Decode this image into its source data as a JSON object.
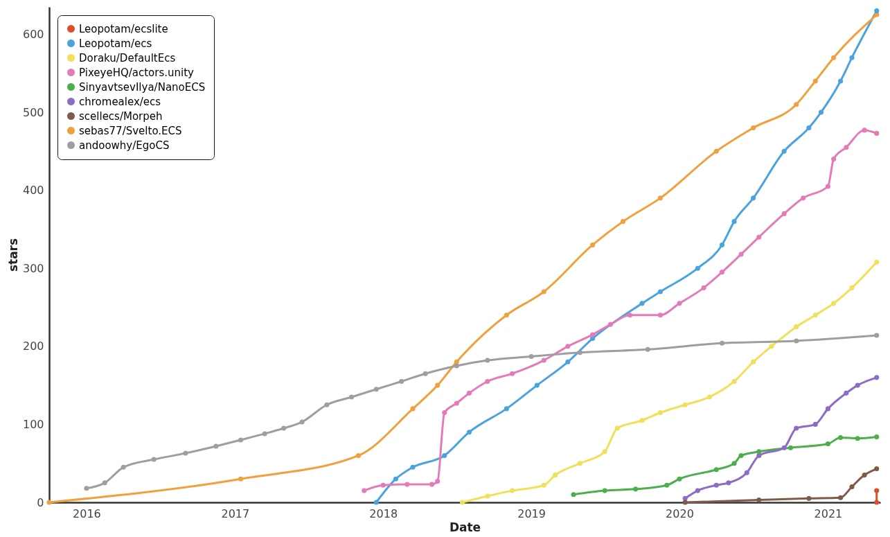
{
  "chart_data": {
    "type": "line",
    "xlabel": "Date",
    "ylabel": "stars",
    "xlim": [
      "2015-10-01",
      "2021-05-10"
    ],
    "xticks": [
      "2016",
      "2017",
      "2018",
      "2019",
      "2020",
      "2021"
    ],
    "ylim": [
      0,
      635
    ],
    "yticks": [
      0,
      100,
      200,
      300,
      400,
      500,
      600
    ],
    "grid": false,
    "legend": "top left",
    "marker": "circle",
    "line_style": "solid",
    "series": [
      {
        "name": "Leopotam/ecslite",
        "color": "#d9502e",
        "x": [
          "2021-05-01",
          "2021-05-01"
        ],
        "values": [
          0,
          15
        ]
      },
      {
        "name": "Leopotam/ecs",
        "color": "#4aa3df",
        "x": [
          "2017-12-15",
          "2018-02-01",
          "2018-03-15",
          "2018-06-01",
          "2018-08-01",
          "2018-11-01",
          "2019-01-15",
          "2019-04-01",
          "2019-06-01",
          "2019-10-01",
          "2019-11-15",
          "2020-02-15",
          "2020-04-15",
          "2020-05-15",
          "2020-07-01",
          "2020-09-15",
          "2020-11-15",
          "2020-12-15",
          "2021-02-01",
          "2021-03-01",
          "2021-05-01"
        ],
        "values": [
          0,
          30,
          45,
          60,
          90,
          120,
          150,
          180,
          210,
          255,
          270,
          300,
          330,
          360,
          390,
          450,
          480,
          500,
          540,
          570,
          630
        ]
      },
      {
        "name": "Doraku/DefaultEcs",
        "color": "#f0e05a",
        "x": [
          "2018-07-15",
          "2018-09-15",
          "2018-11-15",
          "2019-02-01",
          "2019-03-01",
          "2019-05-01",
          "2019-07-01",
          "2019-08-01",
          "2019-10-01",
          "2019-11-15",
          "2020-01-15",
          "2020-03-15",
          "2020-05-15",
          "2020-07-01",
          "2020-08-15",
          "2020-10-15",
          "2020-12-01",
          "2021-01-15",
          "2021-03-01",
          "2021-05-01"
        ],
        "values": [
          0,
          8,
          15,
          22,
          35,
          50,
          65,
          95,
          105,
          115,
          125,
          135,
          155,
          180,
          200,
          225,
          240,
          255,
          275,
          308
        ]
      },
      {
        "name": "PixeyeHQ/actors.unity",
        "color": "#e57ab8",
        "x": [
          "2017-11-15",
          "2018-01-01",
          "2018-03-01",
          "2018-05-01",
          "2018-05-15",
          "2018-06-01",
          "2018-07-01",
          "2018-08-01",
          "2018-09-15",
          "2018-11-15",
          "2019-02-01",
          "2019-04-01",
          "2019-06-01",
          "2019-07-15",
          "2019-09-01",
          "2019-11-15",
          "2020-01-01",
          "2020-03-01",
          "2020-04-15",
          "2020-06-01",
          "2020-07-15",
          "2020-09-15",
          "2020-11-01",
          "2021-01-01",
          "2021-01-15",
          "2021-02-15",
          "2021-04-01",
          "2021-05-01"
        ],
        "values": [
          15,
          22,
          23,
          23,
          27,
          115,
          127,
          140,
          155,
          165,
          182,
          200,
          215,
          228,
          240,
          240,
          255,
          275,
          295,
          318,
          340,
          370,
          390,
          405,
          440,
          455,
          477,
          473
        ]
      },
      {
        "name": "SinyavtsevIlya/NanoECS",
        "color": "#4cae4c",
        "x": [
          "2019-04-15",
          "2019-07-01",
          "2019-09-15",
          "2019-12-01",
          "2020-01-01",
          "2020-04-01",
          "2020-05-15",
          "2020-06-01",
          "2020-07-15",
          "2020-10-01",
          "2021-01-01",
          "2021-02-01",
          "2021-03-15",
          "2021-05-01"
        ],
        "values": [
          10,
          15,
          17,
          22,
          30,
          42,
          50,
          60,
          65,
          70,
          75,
          83,
          82,
          84
        ]
      },
      {
        "name": "chromealex/ecs",
        "color": "#8e6bc4",
        "x": [
          "2020-01-15",
          "2020-02-15",
          "2020-04-01",
          "2020-05-01",
          "2020-06-15",
          "2020-07-15",
          "2020-09-15",
          "2020-10-15",
          "2020-12-01",
          "2021-01-01",
          "2021-02-15",
          "2021-03-15",
          "2021-05-01"
        ],
        "values": [
          5,
          15,
          22,
          25,
          38,
          60,
          70,
          95,
          100,
          120,
          140,
          150,
          160
        ]
      },
      {
        "name": "scellecs/Morpeh",
        "color": "#7f5a48",
        "x": [
          "2020-01-15",
          "2020-07-15",
          "2020-11-15",
          "2021-02-01",
          "2021-03-01",
          "2021-04-01",
          "2021-05-01"
        ],
        "values": [
          0,
          3,
          5,
          6,
          20,
          35,
          43
        ]
      },
      {
        "name": "sebas77/Svelto.ECS",
        "color": "#f0a03c",
        "x": [
          "2015-10-01",
          "2017-01-15",
          "2017-11-01",
          "2018-03-15",
          "2018-05-15",
          "2018-07-01",
          "2018-11-01",
          "2019-02-01",
          "2019-06-01",
          "2019-08-15",
          "2019-11-15",
          "2020-04-01",
          "2020-07-01",
          "2020-10-15",
          "2020-12-01",
          "2021-01-15",
          "2021-05-01"
        ],
        "values": [
          0,
          30,
          60,
          120,
          150,
          180,
          240,
          270,
          330,
          360,
          390,
          450,
          480,
          510,
          540,
          570,
          625
        ]
      },
      {
        "name": "andoowhy/EgoCS",
        "color": "#9e9e9e",
        "x": [
          "2016-01-01",
          "2016-02-15",
          "2016-04-01",
          "2016-06-15",
          "2016-09-01",
          "2016-11-15",
          "2017-01-15",
          "2017-03-15",
          "2017-05-01",
          "2017-06-15",
          "2017-08-15",
          "2017-10-15",
          "2017-12-15",
          "2018-02-15",
          "2018-04-15",
          "2018-07-01",
          "2018-09-15",
          "2019-01-01",
          "2019-05-01",
          "2019-10-15",
          "2020-04-15",
          "2020-10-15",
          "2021-05-01"
        ],
        "values": [
          18,
          25,
          45,
          55,
          63,
          72,
          80,
          88,
          95,
          103,
          125,
          135,
          145,
          155,
          165,
          175,
          182,
          187,
          192,
          196,
          204,
          207,
          214
        ]
      }
    ]
  }
}
